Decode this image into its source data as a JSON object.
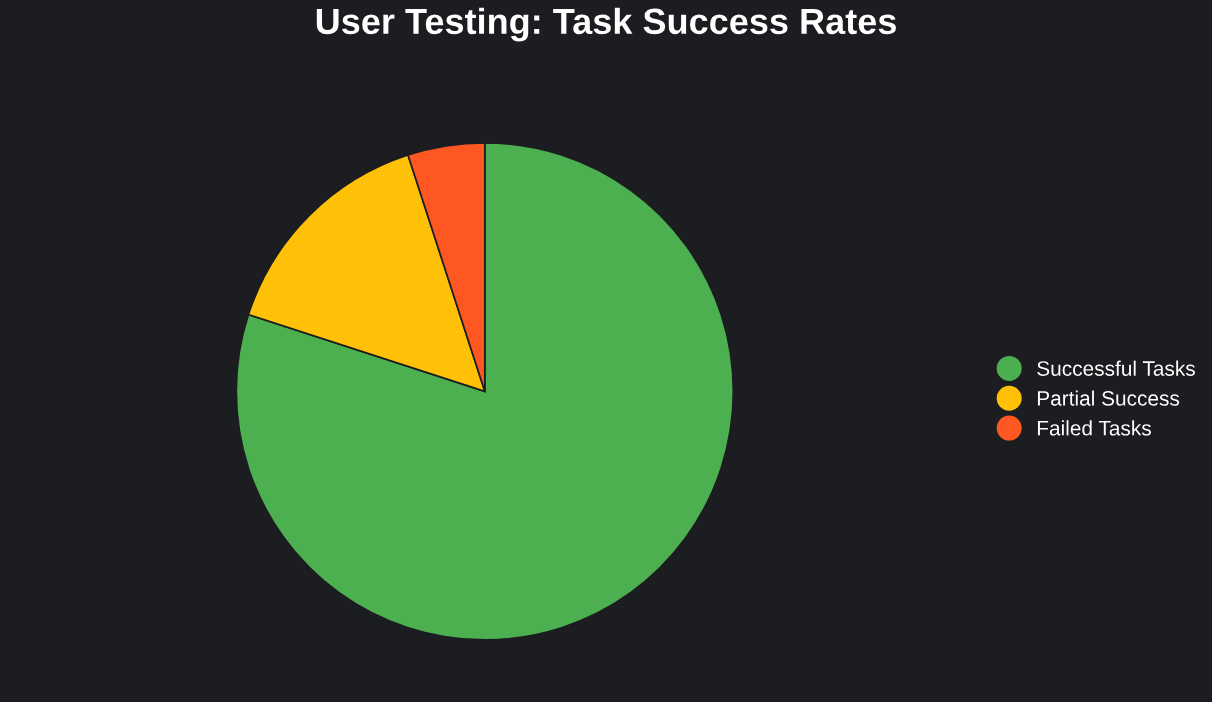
{
  "chart_data": {
    "type": "pie",
    "title": "User Testing: Task Success Rates",
    "categories": [
      "Successful Tasks",
      "Partial Success",
      "Failed Tasks"
    ],
    "values": [
      80,
      15,
      5
    ],
    "colors": [
      "#4caf50",
      "#ffc107",
      "#ff5722"
    ],
    "legend": "right"
  }
}
